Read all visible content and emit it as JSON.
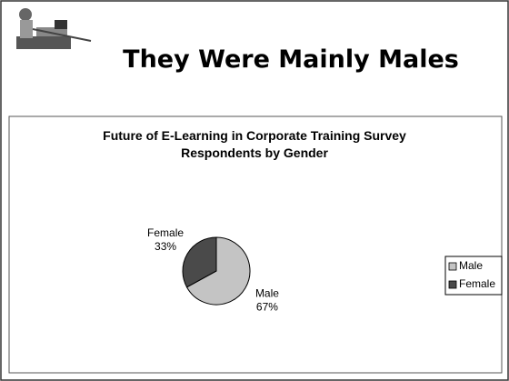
{
  "slide_title": "They Were Mainly Males",
  "chart_data": {
    "type": "pie",
    "title": "Future of E-Learning in Corporate Training Survey Respondents by Gender",
    "categories": [
      "Male",
      "Female"
    ],
    "values": [
      67,
      33
    ],
    "value_labels": [
      "67%",
      "33%"
    ],
    "colors": [
      "#c4c4c4",
      "#4a4a4a"
    ],
    "legend": "right"
  }
}
